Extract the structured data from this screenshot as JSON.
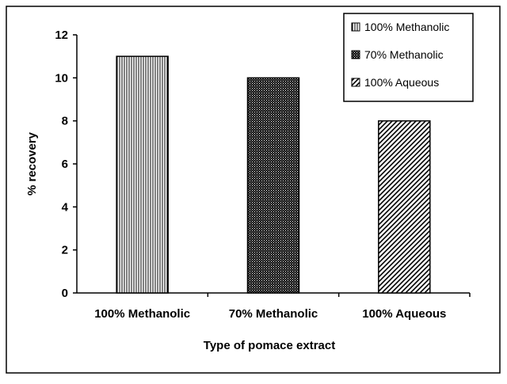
{
  "chart_data": {
    "type": "bar",
    "categories": [
      "100% Methanolic",
      "70% Methanolic",
      "100% Aqueous"
    ],
    "values": [
      11,
      10,
      8
    ],
    "xlabel": "Type of pomace extract",
    "ylabel": "% recovery",
    "ylim": [
      0,
      12
    ],
    "yticks": [
      0,
      2,
      4,
      6,
      8,
      10,
      12
    ],
    "grid": false,
    "legend": {
      "placement": "top-right",
      "entries": [
        "100% Methanolic",
        "70% Methanolic",
        "100% Aqueous"
      ]
    },
    "patterns": [
      "vertical-lines",
      "dots",
      "diagonal-lines"
    ]
  }
}
